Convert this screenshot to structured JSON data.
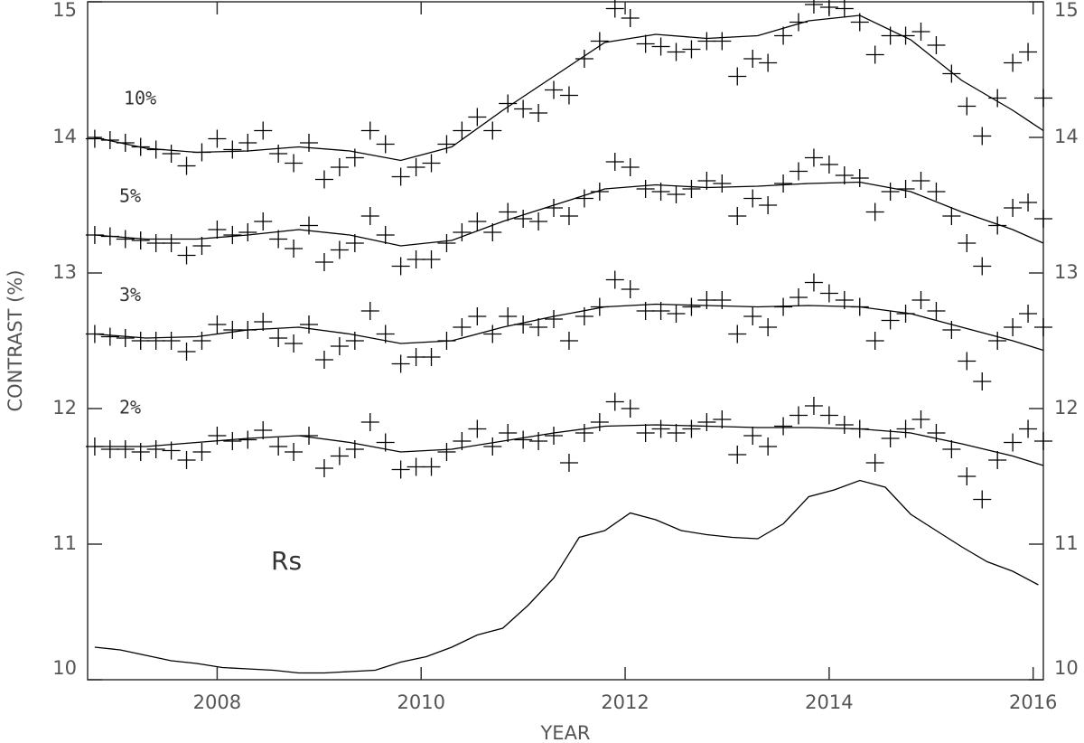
{
  "chart_data": {
    "type": "scatter",
    "xlabel": "YEAR",
    "ylabel": "CONTRAST (%)",
    "xlim": [
      2006.73,
      2016.1
    ],
    "ylim": [
      10,
      15
    ],
    "xticks": [
      2008,
      2010,
      2012,
      2014,
      2016
    ],
    "yticks": [
      10,
      11,
      12,
      13,
      14,
      15
    ],
    "right_axis_labels": true,
    "color": "#000000",
    "x": [
      2006.8,
      2006.95,
      2007.1,
      2007.25,
      2007.4,
      2007.55,
      2007.7,
      2007.85,
      2008.0,
      2008.15,
      2008.3,
      2008.45,
      2008.6,
      2008.75,
      2008.9,
      2009.05,
      2009.2,
      2009.35,
      2009.5,
      2009.65,
      2009.8,
      2009.95,
      2010.1,
      2010.25,
      2010.4,
      2010.55,
      2010.7,
      2010.85,
      2011.0,
      2011.15,
      2011.3,
      2011.45,
      2011.6,
      2011.75,
      2011.9,
      2012.05,
      2012.2,
      2012.35,
      2012.5,
      2012.65,
      2012.8,
      2012.95,
      2013.1,
      2013.25,
      2013.4,
      2013.55,
      2013.7,
      2013.85,
      2014.0,
      2014.15,
      2014.3,
      2014.45,
      2014.6,
      2014.75,
      2014.9,
      2015.05,
      2015.2,
      2015.35,
      2015.5,
      2015.65,
      2015.8,
      2015.95,
      2016.1
    ],
    "fit_x": [
      2006.8,
      2007.3,
      2007.8,
      2008.3,
      2008.8,
      2009.3,
      2009.8,
      2010.3,
      2010.8,
      2011.3,
      2011.8,
      2012.3,
      2012.8,
      2013.3,
      2013.8,
      2014.3,
      2014.8,
      2015.3,
      2015.8,
      2016.1
    ],
    "series": [
      {
        "name": "10%",
        "values": [
          13.99,
          13.98,
          13.96,
          13.93,
          13.91,
          13.88,
          13.79,
          13.89,
          13.99,
          13.91,
          13.96,
          14.05,
          13.88,
          13.81,
          13.96,
          13.69,
          13.78,
          13.85,
          14.05,
          13.95,
          13.71,
          13.78,
          13.81,
          13.95,
          14.05,
          14.15,
          14.05,
          14.25,
          14.21,
          14.18,
          14.35,
          14.31,
          14.58,
          14.71,
          14.95,
          14.88,
          14.69,
          14.67,
          14.63,
          14.65,
          14.71,
          14.71,
          14.45,
          14.58,
          14.55,
          14.75,
          14.85,
          14.98,
          14.96,
          14.95,
          14.85,
          14.61,
          14.75,
          14.75,
          14.78,
          14.68,
          14.47,
          14.23,
          14.01,
          14.29,
          14.55,
          14.63,
          14.29
        ],
        "fit": [
          14.0,
          13.92,
          13.89,
          13.9,
          13.93,
          13.9,
          13.83,
          13.93,
          14.2,
          14.45,
          14.7,
          14.76,
          14.73,
          14.75,
          14.86,
          14.9,
          14.72,
          14.42,
          14.2,
          14.05
        ]
      },
      {
        "name": "5%",
        "values": [
          13.28,
          13.27,
          13.25,
          13.24,
          13.22,
          13.22,
          13.13,
          13.2,
          13.32,
          13.28,
          13.3,
          13.38,
          13.25,
          13.18,
          13.35,
          13.08,
          13.17,
          13.22,
          13.42,
          13.28,
          13.05,
          13.1,
          13.1,
          13.22,
          13.3,
          13.38,
          13.3,
          13.45,
          13.4,
          13.38,
          13.48,
          13.42,
          13.55,
          13.6,
          13.82,
          13.78,
          13.62,
          13.6,
          13.58,
          13.62,
          13.68,
          13.66,
          13.42,
          13.55,
          13.5,
          13.66,
          13.75,
          13.85,
          13.8,
          13.72,
          13.7,
          13.45,
          13.6,
          13.62,
          13.68,
          13.6,
          13.42,
          13.22,
          13.05,
          13.35,
          13.48,
          13.52,
          13.4
        ],
        "fit": [
          13.28,
          13.25,
          13.25,
          13.28,
          13.32,
          13.28,
          13.2,
          13.24,
          13.38,
          13.5,
          13.62,
          13.65,
          13.63,
          13.64,
          13.66,
          13.67,
          13.6,
          13.45,
          13.32,
          13.22
        ]
      },
      {
        "name": "3%",
        "values": [
          12.55,
          12.53,
          12.52,
          12.5,
          12.5,
          12.5,
          12.42,
          12.5,
          12.62,
          12.58,
          12.58,
          12.64,
          12.52,
          12.48,
          12.62,
          12.36,
          12.46,
          12.5,
          12.72,
          12.55,
          12.33,
          12.38,
          12.38,
          12.5,
          12.6,
          12.68,
          12.55,
          12.68,
          12.62,
          12.6,
          12.66,
          12.5,
          12.68,
          12.75,
          12.95,
          12.88,
          12.72,
          12.72,
          12.7,
          12.75,
          12.8,
          12.8,
          12.55,
          12.68,
          12.6,
          12.75,
          12.82,
          12.93,
          12.85,
          12.8,
          12.75,
          12.5,
          12.65,
          12.7,
          12.8,
          12.72,
          12.58,
          12.35,
          12.2,
          12.5,
          12.6,
          12.7,
          12.6
        ],
        "fit": [
          12.55,
          12.52,
          12.53,
          12.58,
          12.6,
          12.55,
          12.48,
          12.5,
          12.6,
          12.68,
          12.75,
          12.77,
          12.76,
          12.75,
          12.76,
          12.75,
          12.7,
          12.6,
          12.5,
          12.43
        ]
      },
      {
        "name": "2%",
        "values": [
          11.72,
          11.7,
          11.7,
          11.68,
          11.7,
          11.69,
          11.62,
          11.68,
          11.8,
          11.76,
          11.77,
          11.84,
          11.72,
          11.68,
          11.8,
          11.56,
          11.65,
          11.7,
          11.9,
          11.75,
          11.55,
          11.57,
          11.57,
          11.68,
          11.76,
          11.85,
          11.72,
          11.82,
          11.77,
          11.76,
          11.8,
          11.6,
          11.82,
          11.9,
          12.05,
          12.0,
          11.82,
          11.85,
          11.82,
          11.85,
          11.9,
          11.92,
          11.66,
          11.8,
          11.72,
          11.87,
          11.95,
          12.02,
          11.95,
          11.88,
          11.85,
          11.6,
          11.78,
          11.85,
          11.92,
          11.82,
          11.7,
          11.5,
          11.33,
          11.62,
          11.75,
          11.85,
          11.76
        ],
        "fit": [
          11.72,
          11.72,
          11.75,
          11.78,
          11.8,
          11.75,
          11.68,
          11.7,
          11.76,
          11.82,
          11.87,
          11.88,
          11.87,
          11.86,
          11.86,
          11.85,
          11.82,
          11.74,
          11.65,
          11.58
        ]
      }
    ],
    "rs": {
      "name": "Rs",
      "x": [
        2006.8,
        2007.05,
        2007.3,
        2007.55,
        2007.8,
        2008.05,
        2008.3,
        2008.55,
        2008.8,
        2009.05,
        2009.3,
        2009.55,
        2009.8,
        2010.05,
        2010.3,
        2010.55,
        2010.8,
        2011.05,
        2011.3,
        2011.55,
        2011.8,
        2012.05,
        2012.3,
        2012.55,
        2012.8,
        2013.05,
        2013.3,
        2013.55,
        2013.8,
        2014.05,
        2014.3,
        2014.55,
        2014.8,
        2015.05,
        2015.3,
        2015.55,
        2015.8,
        2016.05
      ],
      "values": [
        10.24,
        10.22,
        10.18,
        10.14,
        10.12,
        10.09,
        10.08,
        10.07,
        10.05,
        10.05,
        10.06,
        10.07,
        10.13,
        10.17,
        10.24,
        10.33,
        10.38,
        10.55,
        10.75,
        11.05,
        11.1,
        11.23,
        11.18,
        11.1,
        11.07,
        11.05,
        11.04,
        11.15,
        11.35,
        11.4,
        11.47,
        11.42,
        11.22,
        11.1,
        10.98,
        10.87,
        10.8,
        10.7
      ]
    }
  }
}
